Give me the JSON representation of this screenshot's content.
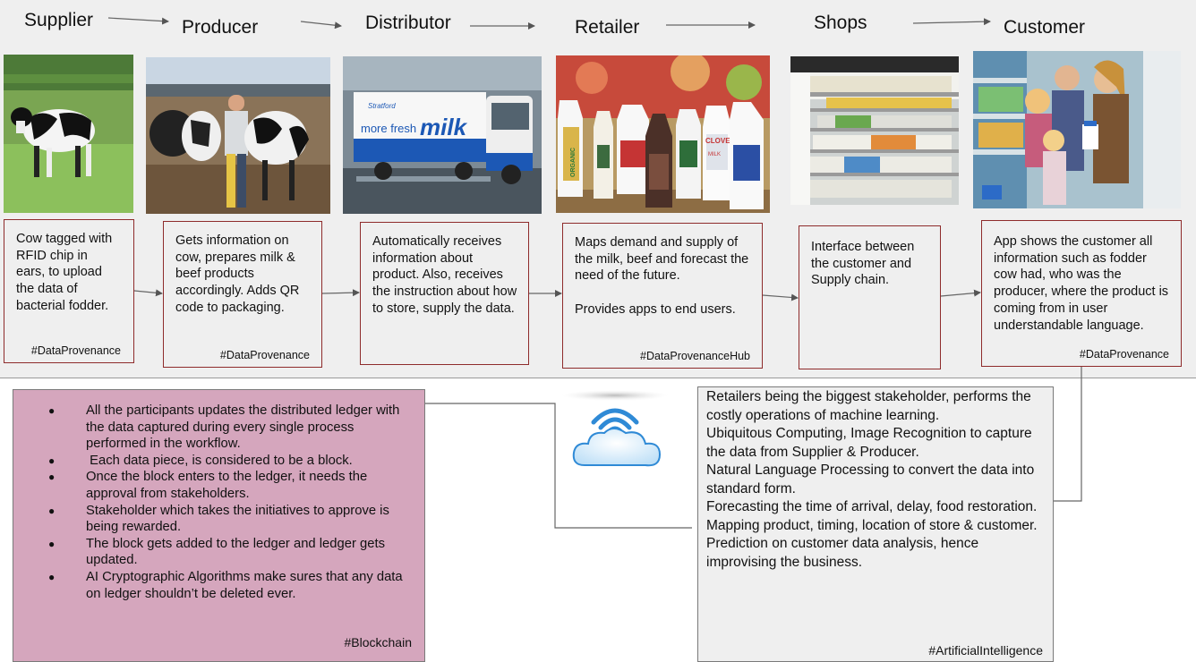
{
  "stages": [
    {
      "title": "Supplier",
      "photo": "cow-in-field-photo",
      "description": "Cow tagged with\nRFID chip in\nears, to upload\nthe data of\nbacterial fodder.",
      "tag": "#DataProvenance"
    },
    {
      "title": "Producer",
      "photo": "farmer-with-cows-photo",
      "description": "Gets information on cow, prepares milk & beef products accordingly. Adds QR code to packaging.",
      "tag": "#DataProvenance"
    },
    {
      "title": "Distributor",
      "photo": "milk-truck-photo",
      "description": "Automatically receives information about product. Also, receives the instruction about how to store, supply the data.",
      "tag": ""
    },
    {
      "title": "Retailer",
      "photo": "milk-bottles-photo",
      "description": "Maps demand and supply of the milk, beef and forecast the need of the future.\n\nProvides apps to end users.",
      "tag": "#DataProvenanceHub"
    },
    {
      "title": "Shops",
      "photo": "supermarket-shelves-photo",
      "description": "Interface between the customer and Supply chain.",
      "tag": ""
    },
    {
      "title": "Customer",
      "photo": "family-shopping-photo",
      "description": "App shows the customer all information such as fodder cow had, who was the producer, where the product is coming from in user understandable language.",
      "tag": "#DataProvenance"
    }
  ],
  "truck_text": {
    "brand": "Stratford",
    "line1": "more fresh",
    "line2": "milk"
  },
  "bottle_labels": {
    "organic": "ORGANIC",
    "clover": "CLOVER",
    "milk": "MILK"
  },
  "blockchain": {
    "bullets": [
      "All the participants updates the distributed ledger with the data captured during every single process performed in the workflow.",
      " Each data piece, is considered to be a block.",
      "Once the block enters to the ledger, it needs the approval from stakeholders.",
      "Stakeholder which takes the initiatives to approve is being rewarded.",
      "The block gets added to the ledger and ledger gets updated.",
      "AI Cryptographic Algorithms make sures that any data on ledger shouldn’t be deleted ever."
    ],
    "bullet_symbol": "●",
    "tag": "#Blockchain",
    "color": "#d5a6bd"
  },
  "ai": {
    "lines": [
      "Retailers being the biggest stakeholder, performs the costly operations of machine learning.",
      "Ubiquitous Computing, Image Recognition to capture the data from Supplier & Producer.",
      "Natural Language Processing to convert the data into standard form.",
      "Forecasting the time of arrival, delay, food restoration.",
      "Mapping product, timing, location of store & customer.",
      "Prediction on customer data analysis, hence improvising the business."
    ],
    "tag": "#ArtificialIntelligence"
  },
  "icons": {
    "center": "wireless-cloud-icon"
  },
  "colors": {
    "card_border": "#8e2b2b",
    "band_bg": "#efefef",
    "cloud_blue": "#3d8fd6"
  }
}
